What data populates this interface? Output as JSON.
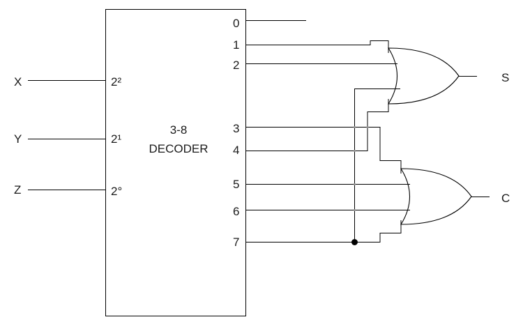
{
  "decoder": {
    "title_line1": "3-8",
    "title_line2": "DECODER"
  },
  "inputs": [
    {
      "name": "X",
      "weight": "2²"
    },
    {
      "name": "Y",
      "weight": "2¹"
    },
    {
      "name": "Z",
      "weight": "2°"
    }
  ],
  "outputs": [
    "0",
    "1",
    "2",
    "3",
    "4",
    "5",
    "6",
    "7"
  ],
  "gate_outputs": {
    "sum": "S",
    "carry": "C"
  }
}
